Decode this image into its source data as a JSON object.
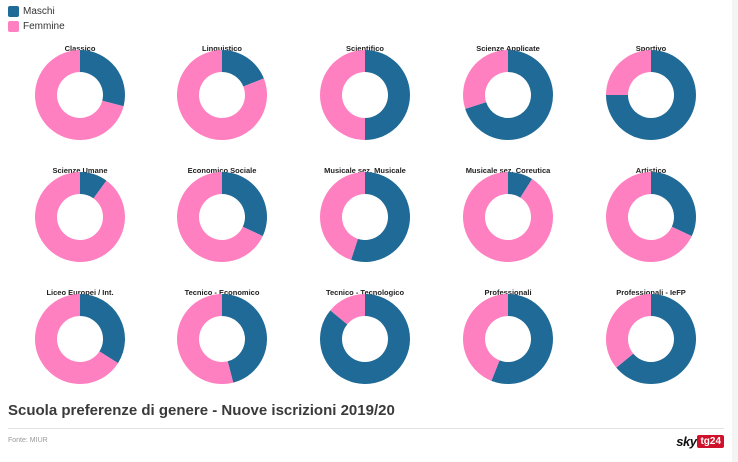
{
  "legend": {
    "items": [
      {
        "label": "Maschi",
        "color": "#1f6a96"
      },
      {
        "label": "Femmine",
        "color": "#ff80c0"
      }
    ]
  },
  "colors": {
    "maschi": "#1f6a96",
    "femmine": "#ff80c0"
  },
  "chart_data": {
    "type": "pie",
    "variant": "donut",
    "series_names": [
      "Maschi",
      "Femmine"
    ],
    "charts": [
      {
        "title": "Classico",
        "values": [
          29,
          71
        ]
      },
      {
        "title": "Linguistico",
        "values": [
          19,
          81
        ]
      },
      {
        "title": "Scientifico",
        "values": [
          50,
          50
        ]
      },
      {
        "title": "Scienze Applicate",
        "values": [
          70,
          30
        ]
      },
      {
        "title": "Sportivo",
        "values": [
          75,
          25
        ]
      },
      {
        "title": "Scienze Umane",
        "values": [
          10,
          90
        ]
      },
      {
        "title": "Economico Sociale",
        "values": [
          32,
          68
        ]
      },
      {
        "title": "Musicale sez. Musicale",
        "values": [
          55,
          45
        ]
      },
      {
        "title": "Musicale sez. Coreutica",
        "values": [
          9,
          91
        ]
      },
      {
        "title": "Artistico",
        "values": [
          32,
          68
        ]
      },
      {
        "title": "Liceo Europei / Int.",
        "values": [
          34,
          66
        ]
      },
      {
        "title": "Tecnico - Economico",
        "values": [
          46,
          54
        ]
      },
      {
        "title": "Tecnico - Tecnologico",
        "values": [
          86,
          14
        ]
      },
      {
        "title": "Professionali",
        "values": [
          56,
          44
        ]
      },
      {
        "title": "Professionali - IeFP",
        "values": [
          64,
          36
        ]
      }
    ]
  },
  "footer": {
    "title": "Scuola preferenze di genere - Nuove iscrizioni 2019/20",
    "source": "Fonte: MIUR",
    "logo_sky": "sky",
    "logo_tg": "tg24"
  }
}
